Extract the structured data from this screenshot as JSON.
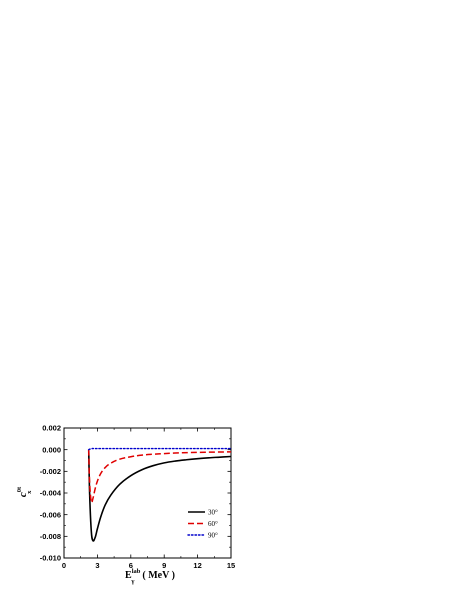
{
  "chart_data": {
    "type": "line",
    "title": "",
    "xlabel": {
      "base": "E",
      "subscript": "γ",
      "superscript": "lab",
      "unit": "( MeV )"
    },
    "ylabel": {
      "base": "c",
      "subscript": "x",
      "superscript": "0t"
    },
    "xlim": [
      0,
      15
    ],
    "ylim": [
      -0.01,
      0.002
    ],
    "x_ticks": [
      0,
      3,
      6,
      9,
      12,
      15
    ],
    "x_tick_labels": [
      "0",
      "3",
      "6",
      "9",
      "12",
      "15"
    ],
    "y_ticks": [
      0.002,
      0.0,
      -0.002,
      -0.004,
      -0.006,
      -0.008,
      -0.01
    ],
    "y_tick_labels": [
      "0.002",
      "0.000",
      "-0.002",
      "-0.004",
      "-0.006",
      "-0.008",
      "-0.010"
    ],
    "grid": false,
    "legend_position": "bottom-right",
    "series": [
      {
        "name": "30°",
        "color": "#000000",
        "style": "solid",
        "x": [
          2.22,
          2.3,
          2.45,
          2.6,
          2.8,
          3.0,
          3.3,
          3.7,
          4.2,
          5.0,
          6.0,
          7.0,
          8.0,
          9.0,
          10.0,
          11.0,
          12.0,
          13.0,
          14.0,
          15.0
        ],
        "y": [
          0.0,
          -0.004,
          -0.0075,
          -0.0084,
          -0.0081,
          -0.0073,
          -0.0062,
          -0.0051,
          -0.0042,
          -0.0032,
          -0.0024,
          -0.00185,
          -0.00148,
          -0.00122,
          -0.00105,
          -0.00093,
          -0.00083,
          -0.00075,
          -0.00069,
          -0.00063
        ]
      },
      {
        "name": "60°",
        "color": "#e00000",
        "style": "dashed",
        "x": [
          2.22,
          2.3,
          2.45,
          2.6,
          2.8,
          3.0,
          3.3,
          3.7,
          4.2,
          5.0,
          6.0,
          7.0,
          8.0,
          9.0,
          10.0,
          12.0,
          15.0
        ],
        "y": [
          0.0,
          -0.003,
          -0.0048,
          -0.0045,
          -0.0036,
          -0.0029,
          -0.0022,
          -0.00165,
          -0.00125,
          -0.00088,
          -0.00065,
          -0.0005,
          -0.00042,
          -0.00036,
          -0.00031,
          -0.00025,
          -0.0002
        ]
      },
      {
        "name": "90°",
        "color": "#0000cc",
        "style": "dotted",
        "x": [
          2.22,
          2.5,
          3.0,
          5.0,
          8.0,
          12.0,
          15.0
        ],
        "y": [
          0.0,
          0.0001,
          0.0001,
          0.0001,
          0.0001,
          0.0001,
          0.0001
        ]
      }
    ]
  }
}
